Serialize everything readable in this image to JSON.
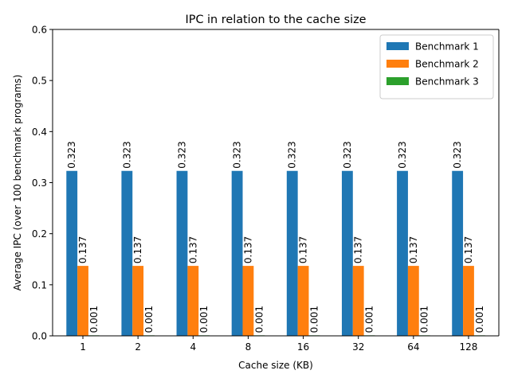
{
  "chart_data": {
    "type": "bar",
    "title": "IPC in relation to the cache size",
    "xlabel": "Cache size (KB)",
    "ylabel": "Average IPC (over 100 benchmark programs)",
    "categories": [
      "1",
      "2",
      "4",
      "8",
      "16",
      "32",
      "64",
      "128"
    ],
    "ylim": [
      0,
      0.6
    ],
    "yticks": [
      "0.0",
      "0.1",
      "0.2",
      "0.3",
      "0.4",
      "0.5",
      "0.6"
    ],
    "grid": false,
    "legend_position": "top-right",
    "series": [
      {
        "name": "Benchmark 1",
        "color": "#1f77b4",
        "values": [
          0.323,
          0.323,
          0.323,
          0.323,
          0.323,
          0.323,
          0.323,
          0.323
        ],
        "labels": [
          "0.323",
          "0.323",
          "0.323",
          "0.323",
          "0.323",
          "0.323",
          "0.323",
          "0.323"
        ]
      },
      {
        "name": "Benchmark 2",
        "color": "#ff7f0e",
        "values": [
          0.137,
          0.137,
          0.137,
          0.137,
          0.137,
          0.137,
          0.137,
          0.137
        ],
        "labels": [
          "0.137",
          "0.137",
          "0.137",
          "0.137",
          "0.137",
          "0.137",
          "0.137",
          "0.137"
        ]
      },
      {
        "name": "Benchmark 3",
        "color": "#2ca02c",
        "values": [
          0.001,
          0.001,
          0.001,
          0.001,
          0.001,
          0.001,
          0.001,
          0.001
        ],
        "labels": [
          "0.001",
          "0.001",
          "0.001",
          "0.001",
          "0.001",
          "0.001",
          "0.001",
          "0.001"
        ]
      }
    ]
  }
}
